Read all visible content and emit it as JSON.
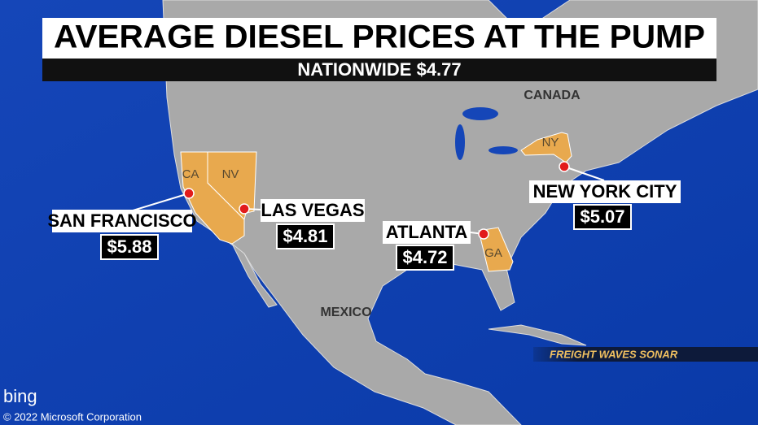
{
  "header": {
    "title": "AVERAGE DIESEL PRICES AT THE PUMP",
    "subtitle": "NATIONWIDE $4.77"
  },
  "regions": {
    "canada": "CANADA",
    "mexico": "MEXICO"
  },
  "states": [
    "CA",
    "NV",
    "NY",
    "GA"
  ],
  "cities": [
    {
      "name": "SAN FRANCISCO",
      "price": "$5.88"
    },
    {
      "name": "LAS VEGAS",
      "price": "$4.81"
    },
    {
      "name": "ATLANTA",
      "price": "$4.72"
    },
    {
      "name": "NEW YORK CITY",
      "price": "$5.07"
    }
  ],
  "source": "FREIGHT WAVES SONAR",
  "map_credit": {
    "logo": "bing",
    "copyright": "© 2022 Microsoft Corporation"
  }
}
